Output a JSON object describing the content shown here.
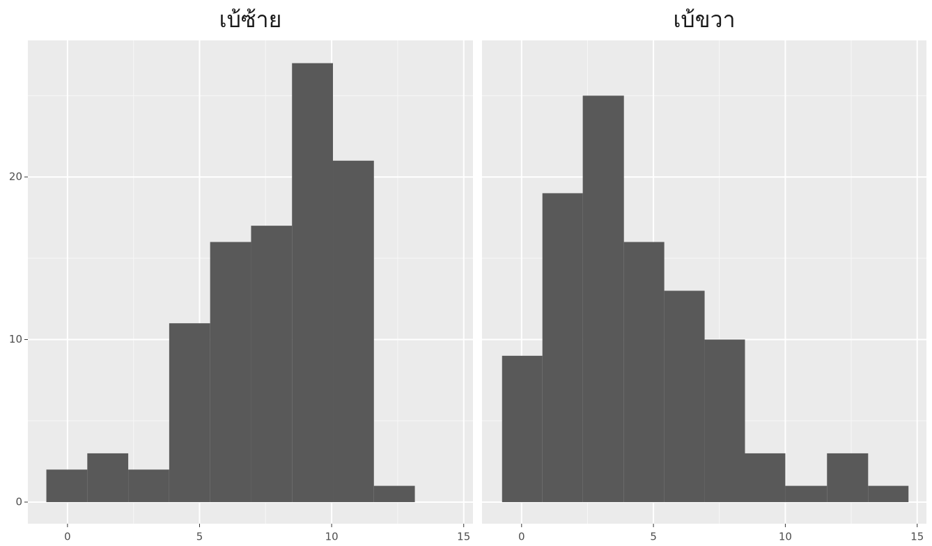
{
  "chart_data": [
    {
      "type": "histogram",
      "title": "เบ้ซ้าย",
      "color": "#595959",
      "bins": [
        -0.8,
        0.75,
        2.3,
        3.85,
        5.4,
        6.95,
        8.5,
        10.05,
        11.6,
        13.15
      ],
      "values": [
        2,
        3,
        2,
        11,
        16,
        17,
        27,
        21,
        1
      ],
      "xlim": [
        -1.5,
        15.35
      ],
      "ylim": [
        -1.33,
        28.4
      ],
      "xticks": [
        0,
        5,
        10,
        15
      ],
      "yticks": [
        0,
        10,
        20
      ],
      "grid": true
    },
    {
      "type": "histogram",
      "title": "เบ้ขวา",
      "color": "#595959",
      "bins": [
        -0.74,
        0.79,
        2.32,
        3.88,
        5.41,
        6.94,
        8.47,
        10.0,
        11.58,
        13.14,
        14.67
      ],
      "values": [
        9,
        19,
        25,
        16,
        13,
        10,
        3,
        1,
        3,
        1
      ],
      "xlim": [
        -1.5,
        15.35
      ],
      "ylim": [
        -1.33,
        28.4
      ],
      "xticks": [
        0,
        5,
        10,
        15
      ],
      "yticks": [
        0,
        10,
        20
      ],
      "grid": true
    }
  ]
}
